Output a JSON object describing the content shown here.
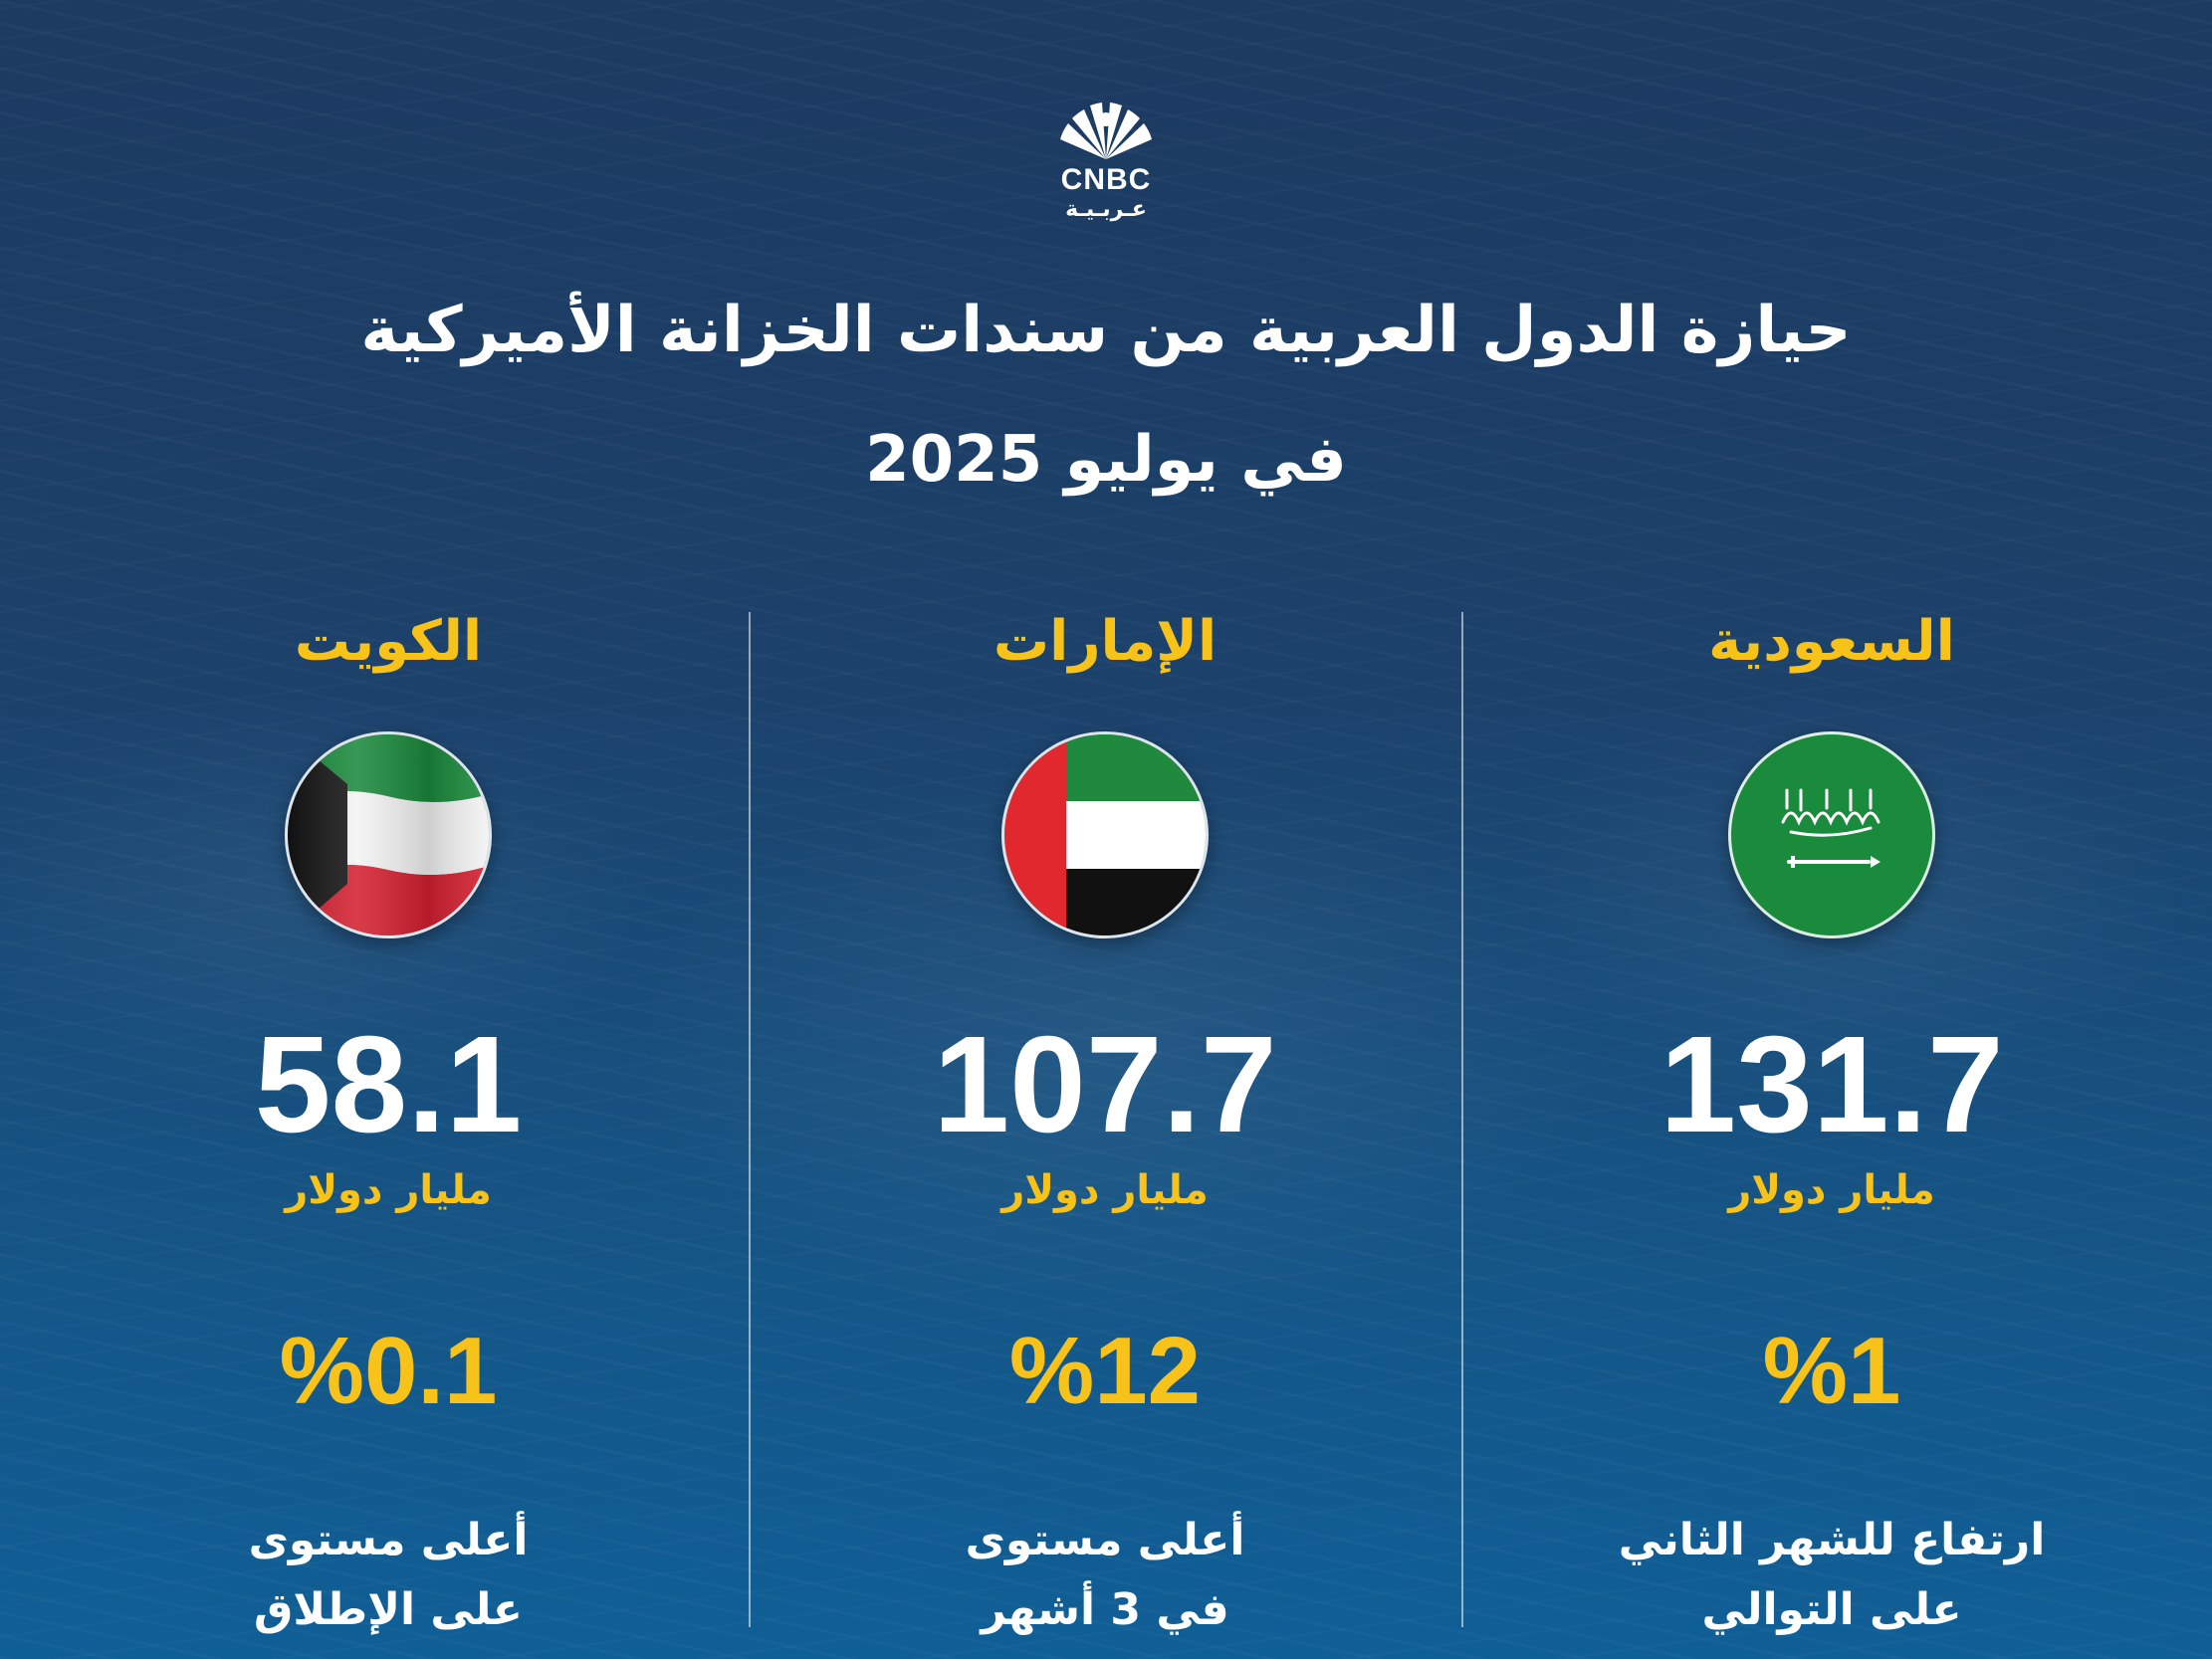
{
  "brand": {
    "logo": "CNBC",
    "sub": "عـربـيـة"
  },
  "title": {
    "line1": "حيازة الدول العربية من سندات الخزانة الأميركية",
    "line2": "في يوليو 2025"
  },
  "colors": {
    "accent": "#f7c21a",
    "text": "#ffffff",
    "background": "#1c416a"
  },
  "countries": [
    {
      "name": "السعودية",
      "flag": "saudi-flag",
      "value": "131.7",
      "unit": "مليار دولار",
      "change": "%1",
      "desc_line1": "ارتفاع للشهر الثاني",
      "desc_line2": "على التوالي"
    },
    {
      "name": "الإمارات",
      "flag": "uae-flag",
      "value": "107.7",
      "unit": "مليار دولار",
      "change": "%12",
      "desc_line1": "أعلى مستوى",
      "desc_line2": "في 3 أشهر"
    },
    {
      "name": "الكويت",
      "flag": "kuwait-flag",
      "value": "58.1",
      "unit": "مليار دولار",
      "change": "%0.1",
      "desc_line1": "أعلى مستوى",
      "desc_line2": "على الإطلاق"
    }
  ]
}
